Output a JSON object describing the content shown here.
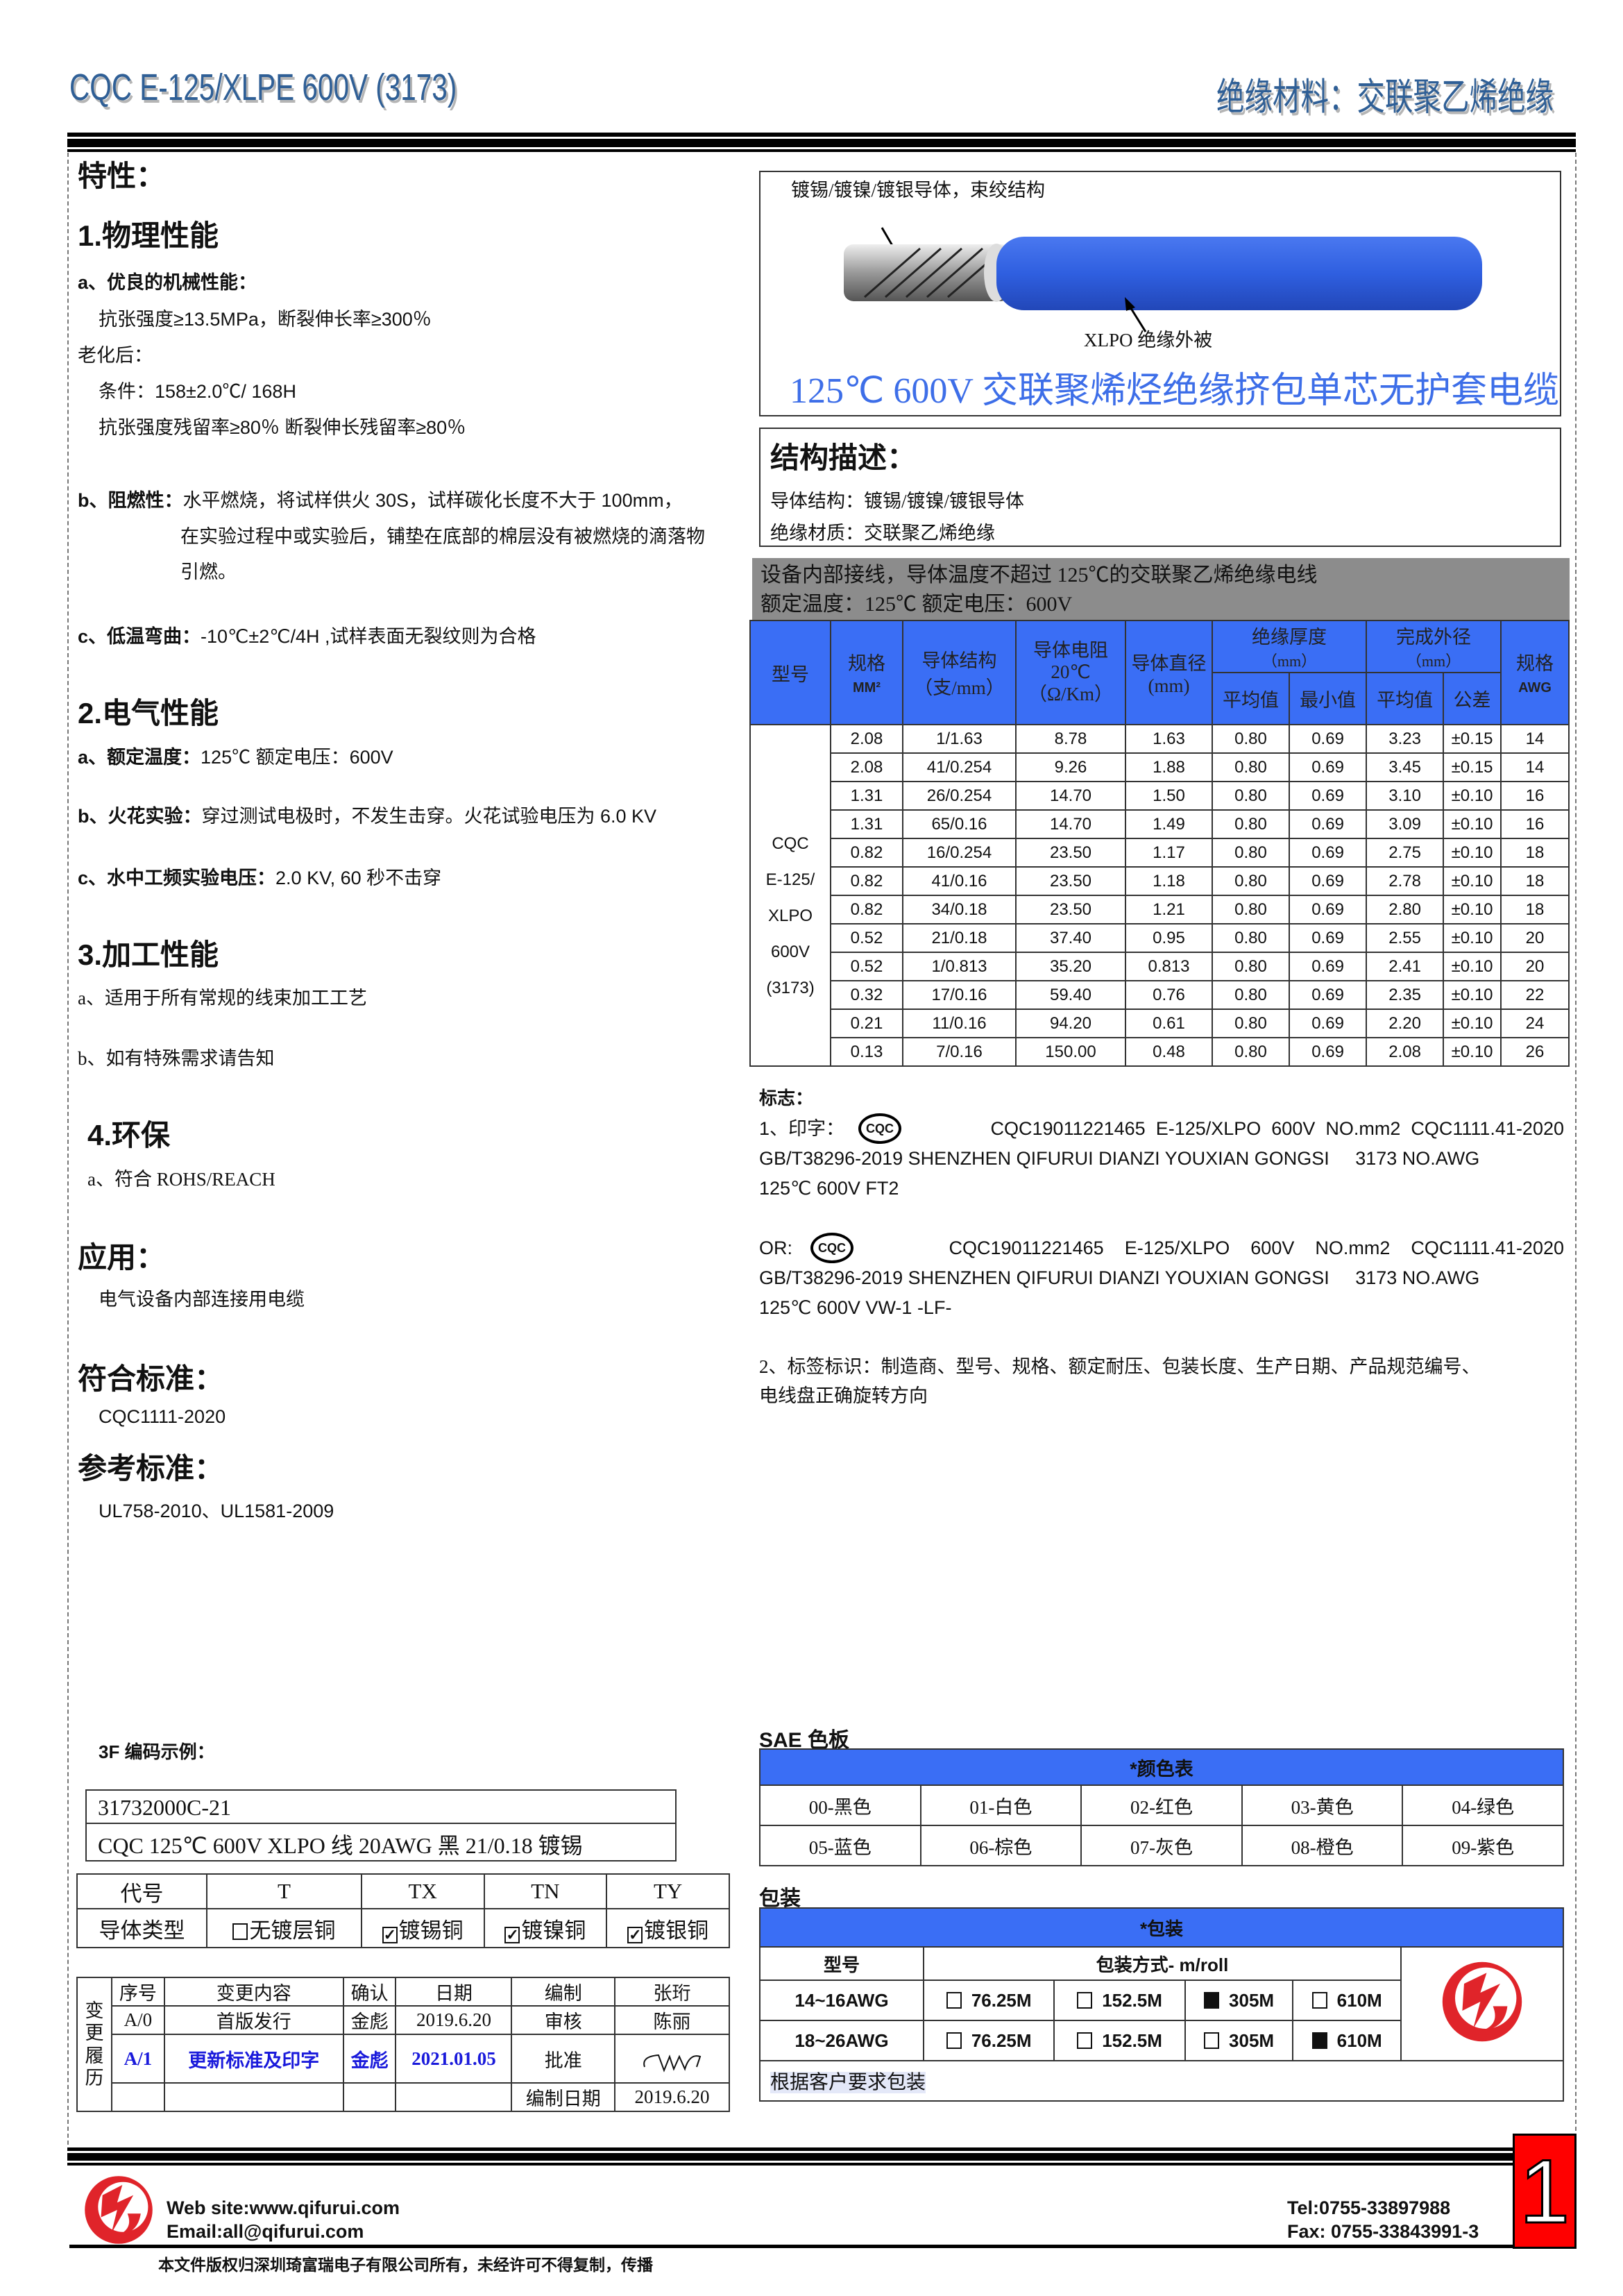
{
  "header": {
    "left_title": "CQC E-125/XLPE 600V (3173)",
    "right_title": "绝缘材料：交联聚乙烯绝缘"
  },
  "left": {
    "properties_title": "特性：",
    "s1": {
      "title": "1.物理性能",
      "a_label": "a、优良的机械性能：",
      "a_line1": "抗张强度≥13.5MPa，断裂伸长率≥300％",
      "aging": "老化后：",
      "cond": "条件：158±2.0℃/ 168H",
      "retain": "抗张强度残留率≥80％  断裂伸长残留率≥80％",
      "b_label": "b、阻燃性：",
      "b_text1": "水平燃烧，将试样供火 30S，试样碳化长度不大于 100mm，",
      "b_text2": "在实验过程中或实验后，铺垫在底部的棉层没有被燃烧的滴落物",
      "b_text3": "引燃。",
      "c_label": "c、低温弯曲：",
      "c_text": "-10℃±2℃/4H ,试样表面无裂纹则为合格"
    },
    "s2": {
      "title": "2.电气性能",
      "a_label": "a、额定温度：",
      "a_text": "125℃    额定电压：600V",
      "b_label": "b、火花实验：",
      "b_text": "穿过测试电极时，不发生击穿。火花试验电压为 6.0 KV",
      "c_label": "c、水中工频实验电压：",
      "c_text": "2.0 KV, 60 秒不击穿"
    },
    "s3": {
      "title": "3.加工性能",
      "a": "a、适用于所有常规的线束加工工艺",
      "b": "b、如有特殊需求请告知"
    },
    "s4": {
      "title": "4.环保",
      "a": "a、符合 ROHS/REACH"
    },
    "application": {
      "title": "应用：",
      "text": "电气设备内部连接用电缆"
    },
    "standard": {
      "title": "符合标准：",
      "text": "CQC1111-2020"
    },
    "reference": {
      "title": "参考标准：",
      "text": "UL758-2010、UL1581-2009"
    },
    "code_example": {
      "title": "3F 编码示例：",
      "line1": "31732000C-21",
      "line2": "CQC 125℃  600V XLPO 线  20AWG  黑  21/0.18 镀锡"
    },
    "conductor_table": {
      "row1": [
        "代号",
        "T",
        "TX",
        "TN",
        "TY"
      ],
      "row2_label": "导体类型",
      "options": [
        {
          "label": "无镀层铜",
          "checked": false
        },
        {
          "label": "镀锡铜",
          "checked": true
        },
        {
          "label": "镀镍铜",
          "checked": true
        },
        {
          "label": "镀银铜",
          "checked": true
        }
      ]
    },
    "revision": {
      "side_label": "变更履历",
      "headers": [
        "序号",
        "变更内容",
        "确认",
        "日期"
      ],
      "rows": [
        [
          "A/0",
          "首版发行",
          "金彪",
          "2019.6.20"
        ],
        [
          "A/1",
          "更新标准及印字",
          "金彪",
          "2021.01.05"
        ],
        [
          "",
          "",
          "",
          ""
        ]
      ],
      "approvals": [
        [
          "编制",
          "张珩"
        ],
        [
          "审核",
          "陈丽"
        ],
        [
          "批准",
          ""
        ],
        [
          "编制日期",
          "2019.6.20"
        ]
      ],
      "highlight_color": "#1a1adb"
    }
  },
  "right": {
    "diagram": {
      "conductor_label": "镀锡/镀镍/镀银导体，束绞结构",
      "insulation_label": "XLPO  绝缘外被",
      "caption": "125℃  600V 交联聚烯烃绝缘挤包单芯无护套电缆",
      "cable_color": "#2f5fe0"
    },
    "structure": {
      "title": "结构描述：",
      "conductor": "导体结构：镀锡/镀镍/镀银导体",
      "insulation": "绝缘材质：交联聚乙烯绝缘"
    },
    "banner": {
      "line1": "设备内部接线，导体温度不超过 125℃的交联聚乙烯绝缘电线",
      "line2": "额定温度：125℃  额定电压：600V"
    },
    "spec_table": {
      "headers": {
        "model": "型号",
        "size": "规格",
        "size_unit": "MM²",
        "structure": "导体结构",
        "structure_unit": "（支/mm）",
        "resistance": "导体电阻",
        "resistance_temp": "20℃",
        "resistance_unit": "（Ω/Km）",
        "diameter": "导体直径(mm)",
        "ins": "绝缘厚度",
        "ins_unit": "（mm）",
        "od": "完成外径",
        "od_unit": "（mm）",
        "awg": "规格",
        "awg_unit": "AWG",
        "avg": "平均值",
        "min": "最小值",
        "avg2": "平均值",
        "tol": "公差"
      },
      "model_lines": [
        "CQC",
        "E-125/",
        "XLPO",
        "600V",
        "(3173)"
      ],
      "rows": [
        [
          "2.08",
          "1/1.63",
          "8.78",
          "1.63",
          "0.80",
          "0.69",
          "3.23",
          "±0.15",
          "14"
        ],
        [
          "2.08",
          "41/0.254",
          "9.26",
          "1.88",
          "0.80",
          "0.69",
          "3.45",
          "±0.15",
          "14"
        ],
        [
          "1.31",
          "26/0.254",
          "14.70",
          "1.50",
          "0.80",
          "0.69",
          "3.10",
          "±0.10",
          "16"
        ],
        [
          "1.31",
          "65/0.16",
          "14.70",
          "1.49",
          "0.80",
          "0.69",
          "3.09",
          "±0.10",
          "16"
        ],
        [
          "0.82",
          "16/0.254",
          "23.50",
          "1.17",
          "0.80",
          "0.69",
          "2.75",
          "±0.10",
          "18"
        ],
        [
          "0.82",
          "41/0.16",
          "23.50",
          "1.18",
          "0.80",
          "0.69",
          "2.78",
          "±0.10",
          "18"
        ],
        [
          "0.82",
          "34/0.18",
          "23.50",
          "1.21",
          "0.80",
          "0.69",
          "2.80",
          "±0.10",
          "18"
        ],
        [
          "0.52",
          "21/0.18",
          "37.40",
          "0.95",
          "0.80",
          "0.69",
          "2.55",
          "±0.10",
          "20"
        ],
        [
          "0.52",
          "1/0.813",
          "35.20",
          "0.813",
          "0.80",
          "0.69",
          "2.41",
          "±0.10",
          "20"
        ],
        [
          "0.32",
          "17/0.16",
          "59.40",
          "0.76",
          "0.80",
          "0.69",
          "2.35",
          "±0.10",
          "22"
        ],
        [
          "0.21",
          "11/0.16",
          "94.20",
          "0.61",
          "0.80",
          "0.69",
          "2.20",
          "±0.10",
          "24"
        ],
        [
          "0.13",
          "7/0.16",
          "150.00",
          "0.48",
          "0.80",
          "0.69",
          "2.08",
          "±0.10",
          "26"
        ]
      ]
    },
    "marking": {
      "title": "标志：",
      "p1_prefix": "1、印字：",
      "cqc_logo": "CQC",
      "p1_l1": "CQC19011221465  E-125/XLPO  600V  NO.mm2  CQC1111.41-2020",
      "p1_l2": "GB/T38296-2019 SHENZHEN QIFURUI DIANZI YOUXIAN GONGSI     3173 NO.AWG",
      "p1_l3": "125℃  600V FT2",
      "p2_prefix": "OR:",
      "p2_l1": "CQC19011221465    E-125/XLPO    600V    NO.mm2    CQC1111.41-2020",
      "p2_l2": "GB/T38296-2019 SHENZHEN QIFURUI DIANZI YOUXIAN GONGSI     3173 NO.AWG",
      "p2_l3": "125℃  600V VW-1 -LF-",
      "label_l1": "2、标签标识：制造商、型号、规格、额定耐压、包装长度、生产日期、产品规范编号、",
      "label_l2": "电线盘正确旋转方向"
    },
    "colors": {
      "title": "SAE 色板",
      "header": "*颜色表",
      "items": [
        "00-黑色",
        "01-白色",
        "02-红色",
        "03-黄色",
        "04-绿色",
        "05-蓝色",
        "06-棕色",
        "07-灰色",
        "08-橙色",
        "09-紫色"
      ]
    },
    "packaging": {
      "title": "包装",
      "header": "*包装",
      "model_h": "型号",
      "method_h": "包装方式- m/roll",
      "rows": [
        {
          "model": "14~16AWG",
          "opts": [
            [
              "76.25M",
              false
            ],
            [
              "152.5M",
              false
            ],
            [
              "305M",
              true
            ],
            [
              "610M",
              false
            ]
          ]
        },
        {
          "model": "18~26AWG",
          "opts": [
            [
              "76.25M",
              false
            ],
            [
              "152.5M",
              false
            ],
            [
              "305M",
              false
            ],
            [
              "610M",
              true
            ]
          ]
        }
      ],
      "note": "根据客户要求包装"
    }
  },
  "footer": {
    "website": "Web site:www.qifurui.com",
    "email": "Email:all@qifurui.com",
    "tel": "Tel:0755-33897988",
    "fax": "Fax: 0755-33843991-3",
    "copyright": "本文件版权归深圳琦富瑞电子有限公司所有，未经许可不得复制，传播",
    "page": "1",
    "brand_color": "#e0242a"
  }
}
